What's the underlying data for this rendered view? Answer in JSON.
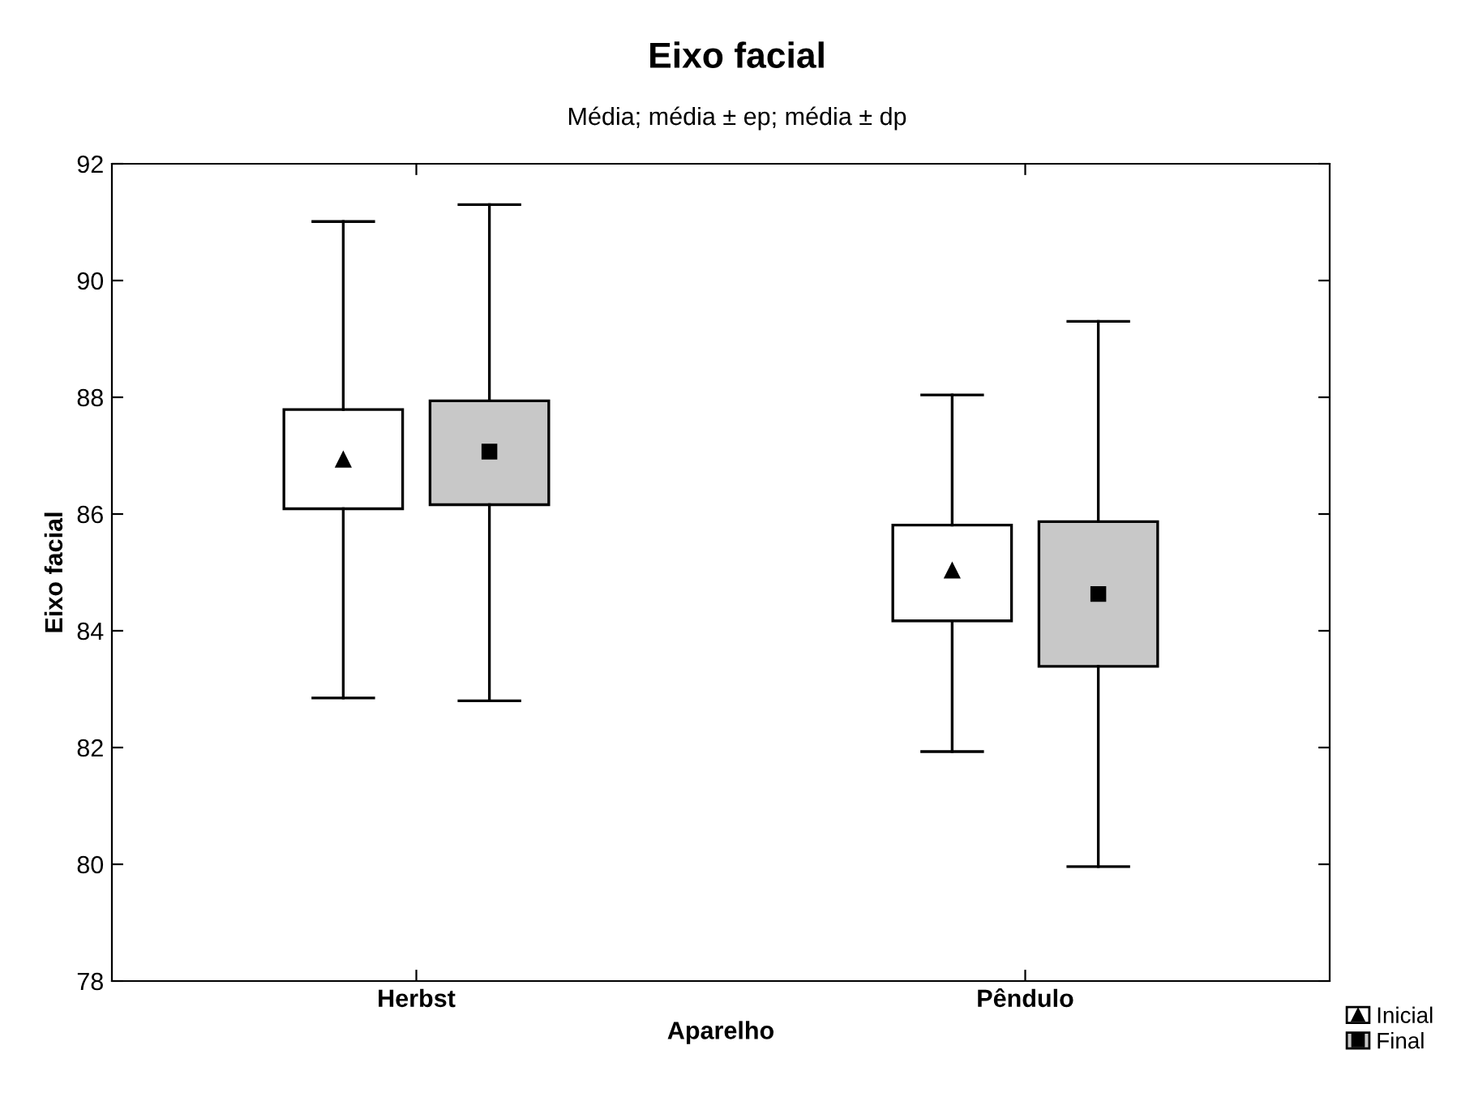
{
  "chart_data": {
    "type": "box",
    "title": "Eixo facial",
    "subtitle": "Média; média ± ep; média ± dp",
    "xlabel": "Aparelho",
    "ylabel": "Eixo facial",
    "categories": [
      "Herbst",
      "Pêndulo"
    ],
    "ylim": [
      78,
      92
    ],
    "yticks": [
      78,
      80,
      82,
      84,
      86,
      88,
      90,
      92
    ],
    "grid": false,
    "legend": "bottom right",
    "series": [
      {
        "name": "Inicial",
        "color": "#ffffff",
        "marker": "triangle",
        "boxes": [
          {
            "low": 82.85,
            "q1": 86.09,
            "median": 86.93,
            "q3": 87.79,
            "high": 91.01
          },
          {
            "low": 81.93,
            "q1": 84.17,
            "median": 85.03,
            "q3": 85.81,
            "high": 88.04
          }
        ]
      },
      {
        "name": "Final",
        "color": "#c8c8c8",
        "marker": "square",
        "boxes": [
          {
            "low": 82.8,
            "q1": 86.16,
            "median": 87.07,
            "q3": 87.94,
            "high": 91.3
          },
          {
            "low": 79.96,
            "q1": 83.39,
            "median": 84.63,
            "q3": 85.87,
            "high": 89.3
          }
        ]
      }
    ]
  }
}
